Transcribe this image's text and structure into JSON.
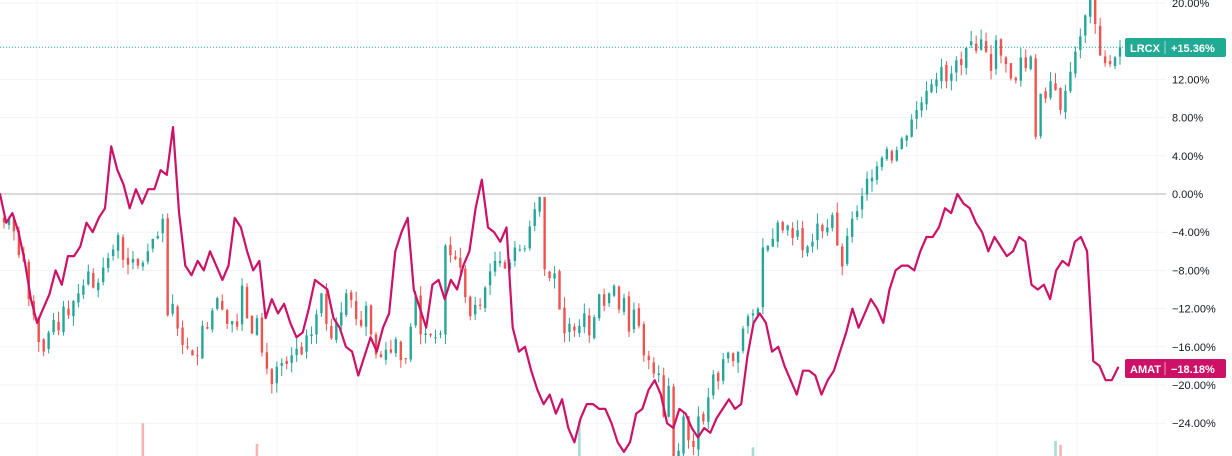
{
  "colors": {
    "up": "#26a69a",
    "down": "#ef5350",
    "line": "#cc1166",
    "lrcx_badge": "#22ab94",
    "amat_badge": "#cc1166",
    "grid": "#f0f3fa",
    "zero_line": "#b2b5be",
    "vol_up": "#a8dcd3",
    "vol_down": "#f7b4b4"
  },
  "labels": {
    "lrcx_symbol": "LRCX",
    "lrcx_value": "+15.36%",
    "amat_symbol": "AMAT",
    "amat_value": "−18.18%"
  },
  "chart_data": {
    "type": "line",
    "y_axis": {
      "range": [
        -27,
        20.5
      ],
      "ticks": [
        20,
        12,
        8,
        4,
        0,
        -4,
        -8,
        -12,
        -16,
        -20,
        -24
      ],
      "tick_labels": [
        "20.00%",
        "12.00%",
        "8.00%",
        "4.00%",
        "0.00%",
        "−4.00%",
        "−8.00%",
        "−12.00%",
        "−16.00%",
        "−20.00%",
        "−24.00%"
      ],
      "unit": "%"
    },
    "zero_line": 0,
    "grid": true,
    "series": [
      {
        "name": "LRCX",
        "style": "candlestick",
        "last_value": 15.36,
        "close": [
          -3.0,
          -2.6,
          -3.9,
          -6.4,
          -7.1,
          -11.0,
          -12.7,
          -15.5,
          -16.5,
          -14.5,
          -13.2,
          -14.3,
          -11.8,
          -12.7,
          -11.2,
          -10.4,
          -9.6,
          -8.1,
          -9.8,
          -9.3,
          -7.7,
          -6.7,
          -5.8,
          -4.3,
          -6.9,
          -7.4,
          -6.8,
          -7.5,
          -7.2,
          -6.0,
          -4.7,
          -4.4,
          -2.6,
          -12.7,
          -11.5,
          -14.1,
          -15.8,
          -16.1,
          -16.9,
          -17.0,
          -13.8,
          -14.1,
          -12.2,
          -10.9,
          -12.1,
          -13.6,
          -13.3,
          -13.9,
          -9.6,
          -13.0,
          -14.6,
          -13.0,
          -16.6,
          -18.3,
          -19.9,
          -18.1,
          -17.7,
          -17.8,
          -16.9,
          -16.2,
          -16.8,
          -14.8,
          -14.7,
          -12.6,
          -10.4,
          -13.6,
          -15.1,
          -13.5,
          -12.4,
          -10.4,
          -11.1,
          -13.1,
          -13.8,
          -11.7,
          -14.7,
          -16.8,
          -17.1,
          -16.3,
          -16.6,
          -15.2,
          -17.4,
          -17.2,
          -13.9,
          -10.7,
          -14.7,
          -14.6,
          -14.8,
          -15.0,
          -14.6,
          -5.4,
          -6.4,
          -6.8,
          -7.7,
          -10.8,
          -12.8,
          -11.6,
          -11.7,
          -9.8,
          -8.1,
          -7.0,
          -7.0,
          -7.8,
          -7.2,
          -5.6,
          -5.8,
          -5.7,
          -3.4,
          -1.6,
          -0.3,
          -7.9,
          -8.8,
          -8.3,
          -12.1,
          -14.6,
          -13.6,
          -14.3,
          -13.8,
          -12.5,
          -14.8,
          -12.9,
          -10.5,
          -11.7,
          -10.4,
          -9.6,
          -12.1,
          -10.9,
          -14.4,
          -12.1,
          -13.8,
          -16.9,
          -17.4,
          -18.8,
          -18.8,
          -23.3,
          -20.1,
          -28.2,
          -26.9,
          -23.3,
          -25.8,
          -26.5,
          -23.3,
          -23.8,
          -21.3,
          -18.9,
          -19.6,
          -17.3,
          -16.6,
          -17.5,
          -16.5,
          -14.1,
          -12.8,
          -12.5,
          -12.0,
          -5.6,
          -5.4,
          -4.7,
          -3.0,
          -3.8,
          -3.3,
          -4.6,
          -3.8,
          -5.9,
          -5.5,
          -5.0,
          -3.1,
          -3.9,
          -3.5,
          -2.2,
          -5.4,
          -7.6,
          -4.4,
          -2.6,
          -1.8,
          -0.2,
          1.6,
          1.7,
          2.9,
          3.8,
          4.7,
          3.5,
          4.6,
          5.8,
          6.1,
          7.8,
          8.8,
          9.6,
          10.8,
          11.5,
          12.0,
          13.3,
          11.8,
          12.6,
          14.0,
          13.5,
          15.3,
          16.0,
          15.0,
          16.2,
          14.9,
          12.9,
          16.1,
          14.5,
          13.6,
          12.1,
          11.9,
          14.3,
          13.2,
          14.4,
          6.0,
          10.5,
          10.0,
          11.8,
          10.9,
          8.8,
          10.8,
          12.8,
          14.9,
          16.5,
          18.7,
          20.6,
          17.8,
          14.5,
          13.7,
          13.6,
          14.3,
          15.36
        ],
        "volume_markers": [
          {
            "bar": 28,
            "direction": "down",
            "relative_height": 0.91
          },
          {
            "bar": 51,
            "direction": "down",
            "relative_height": 0.34
          },
          {
            "bar": 116,
            "direction": "up",
            "relative_height": 0.97
          },
          {
            "bar": 151,
            "direction": "up",
            "relative_height": 0.24
          },
          {
            "bar": 212,
            "direction": "up",
            "relative_height": 0.42
          },
          {
            "bar": 213,
            "direction": "down",
            "relative_height": 0.31
          },
          {
            "bar": 323,
            "direction": "up",
            "relative_height": 0.65
          }
        ]
      },
      {
        "name": "AMAT",
        "style": "line",
        "last_value": -18.18,
        "values": [
          0.0,
          -3.0,
          -2.0,
          -4.0,
          -7.0,
          -11.0,
          -13.5,
          -12.0,
          -10.5,
          -8.0,
          -9.5,
          -6.5,
          -6.5,
          -5.5,
          -3.0,
          -4.0,
          -2.5,
          -1.5,
          5.0,
          2.5,
          1.0,
          -1.5,
          0.5,
          -1.0,
          0.5,
          0.5,
          2.5,
          2.0,
          7.0,
          -2.0,
          -7.5,
          -8.5,
          -7.0,
          -8.0,
          -6.0,
          -7.5,
          -9.0,
          -7.5,
          -2.5,
          -3.5,
          -6.0,
          -8.0,
          -7.0,
          -13.0,
          -11.0,
          -12.5,
          -11.5,
          -13.5,
          -15.0,
          -14.5,
          -12.0,
          -9.0,
          -9.5,
          -10.0,
          -13.0,
          -14.0,
          -16.0,
          -16.5,
          -19.0,
          -17.0,
          -15.0,
          -16.5,
          -14.0,
          -12.5,
          -6.0,
          -4.0,
          -2.5,
          -10.0,
          -12.0,
          -14.0,
          -9.5,
          -9.0,
          -11.0,
          -9.0,
          -10.0,
          -7.5,
          -6.0,
          -1.5,
          1.5,
          -3.5,
          -4.0,
          -5.0,
          -3.5,
          -14.0,
          -16.5,
          -16.0,
          -18.5,
          -20.5,
          -22.0,
          -21.0,
          -23.0,
          -21.5,
          -24.5,
          -26.0,
          -23.5,
          -22.0,
          -22.0,
          -22.5,
          -22.5,
          -24.0,
          -26.0,
          -27.0,
          -26.0,
          -23.0,
          -22.5,
          -20.5,
          -19.5,
          -21.0,
          -24.0,
          -24.5,
          -22.5,
          -23.0,
          -24.5,
          -25.5,
          -24.5,
          -25.0,
          -23.5,
          -22.5,
          -21.5,
          -22.5,
          -22.0,
          -17.0,
          -13.5,
          -12.5,
          -13.5,
          -16.5,
          -16.0,
          -18.0,
          -19.5,
          -21.0,
          -18.5,
          -18.5,
          -19.0,
          -21.0,
          -19.5,
          -18.5,
          -16.5,
          -14.5,
          -12.0,
          -14.0,
          -12.5,
          -11.0,
          -12.0,
          -13.5,
          -10.0,
          -8.0,
          -7.5,
          -7.5,
          -8.0,
          -6.0,
          -4.5,
          -4.5,
          -3.5,
          -1.5,
          -2.0,
          0.0,
          -1.0,
          -1.5,
          -3.0,
          -4.0,
          -6.0,
          -4.5,
          -5.5,
          -6.5,
          -6.0,
          -4.5,
          -5.0,
          -9.5,
          -10.0,
          -9.5,
          -11.0,
          -8.0,
          -7.0,
          -7.5,
          -5.0,
          -4.5,
          -6.0,
          -17.5,
          -18.0,
          -19.5,
          -19.5,
          -18.18
        ]
      }
    ]
  }
}
